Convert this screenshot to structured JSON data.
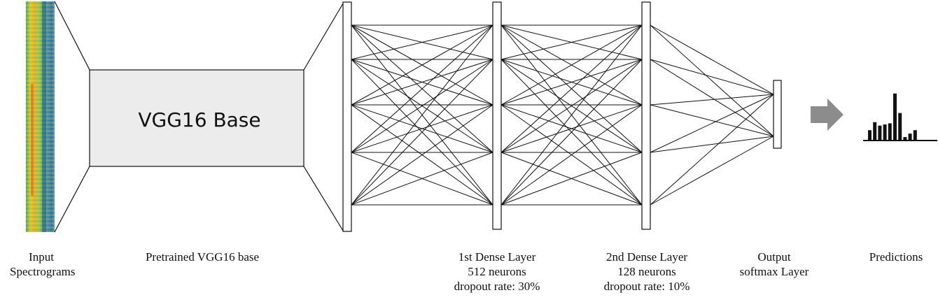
{
  "blocks": {
    "vgg_base_title": "VGG16 Base"
  },
  "labels": {
    "input": [
      "Input",
      "Spectrograms"
    ],
    "pretrained": "Pretrained VGG16 base",
    "dense1": [
      "1st Dense Layer",
      "512 neurons",
      "dropout rate: 30%"
    ],
    "dense2": [
      "2nd Dense Layer",
      "128 neurons",
      "dropout rate: 10%"
    ],
    "output": [
      "Output",
      "softmax Layer"
    ],
    "predictions": "Predictions"
  },
  "colors": {
    "vgg_fill": "#ececec",
    "arrow": "#8c8c8c",
    "line": "#111111"
  },
  "network": {
    "dense1_nodes": 5,
    "dense2_nodes": 5,
    "dense3_nodes": 5,
    "output_nodes": 1
  },
  "predictions_bars": [
    0.18,
    0.32,
    0.26,
    0.28,
    0.3,
    0.82,
    0.48,
    0.06,
    0.12,
    0.18
  ]
}
